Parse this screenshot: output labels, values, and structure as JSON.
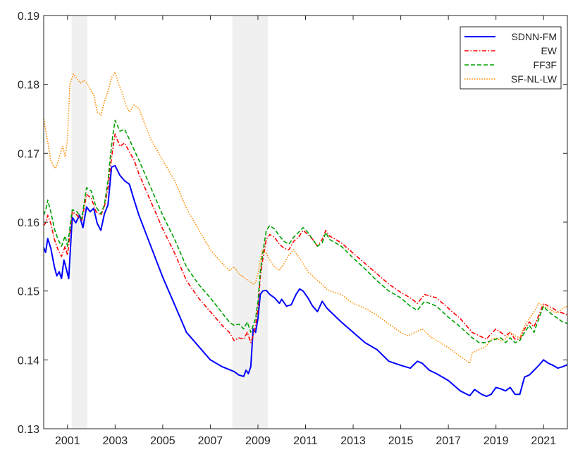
{
  "chart_data": {
    "type": "line",
    "title": "",
    "xlabel": "",
    "ylabel": "",
    "xlim": [
      2000.0,
      2022.0
    ],
    "ylim": [
      0.13,
      0.19
    ],
    "xticks": [
      2001,
      2003,
      2005,
      2007,
      2009,
      2011,
      2013,
      2015,
      2017,
      2019,
      2021
    ],
    "xtick_labels": [
      "2001",
      "2003",
      "2005",
      "2007",
      "2009",
      "2011",
      "2013",
      "2015",
      "2017",
      "2019",
      "2021"
    ],
    "yticks": [
      0.13,
      0.14,
      0.15,
      0.16,
      0.17,
      0.18,
      0.19
    ],
    "ytick_labels": [
      "0.13",
      "0.14",
      "0.15",
      "0.16",
      "0.17",
      "0.18",
      "0.19"
    ],
    "grid": false,
    "legend_position": "top-right",
    "shaded_periods": [
      [
        2001.17,
        2001.83
      ],
      [
        2007.92,
        2009.42
      ]
    ],
    "series": [
      {
        "name": "SDNN-FM",
        "color": "#0000ff",
        "style": "solid",
        "x": [
          2000.0,
          2000.08,
          2000.17,
          2000.3,
          2000.45,
          2000.55,
          2000.65,
          2000.75,
          2000.85,
          2000.95,
          2001.05,
          2001.2,
          2001.35,
          2001.5,
          2001.65,
          2001.8,
          2001.95,
          2002.1,
          2002.25,
          2002.4,
          2002.55,
          2002.7,
          2002.85,
          2003.0,
          2003.2,
          2003.4,
          2003.6,
          2003.8,
          2004.0,
          2004.5,
          2005.0,
          2005.5,
          2006.0,
          2006.5,
          2007.0,
          2007.5,
          2008.0,
          2008.2,
          2008.4,
          2008.5,
          2008.6,
          2008.7,
          2008.8,
          2008.9,
          2009.0,
          2009.1,
          2009.2,
          2009.35,
          2009.5,
          2009.7,
          2009.9,
          2010.0,
          2010.2,
          2010.4,
          2010.6,
          2010.75,
          2010.9,
          2011.1,
          2011.3,
          2011.5,
          2011.7,
          2011.9,
          2012.2,
          2012.5,
          2013.0,
          2013.5,
          2014.0,
          2014.5,
          2015.0,
          2015.4,
          2015.7,
          2015.9,
          2016.2,
          2016.5,
          2017.0,
          2017.5,
          2017.9,
          2018.1,
          2018.4,
          2018.6,
          2018.8,
          2019.0,
          2019.2,
          2019.4,
          2019.6,
          2019.8,
          2020.0,
          2020.2,
          2020.4,
          2020.6,
          2020.8,
          2021.0,
          2021.2,
          2021.4,
          2021.6,
          2021.8,
          2022.0
        ],
        "values": [
          0.1563,
          0.1556,
          0.1576,
          0.1562,
          0.1535,
          0.1522,
          0.1528,
          0.1518,
          0.1545,
          0.1532,
          0.1518,
          0.1607,
          0.1599,
          0.161,
          0.1592,
          0.1622,
          0.1615,
          0.162,
          0.1598,
          0.1588,
          0.1612,
          0.1625,
          0.168,
          0.1682,
          0.1668,
          0.166,
          0.1655,
          0.1632,
          0.161,
          0.1565,
          0.152,
          0.148,
          0.144,
          0.142,
          0.14,
          0.139,
          0.1383,
          0.1378,
          0.1376,
          0.1385,
          0.138,
          0.139,
          0.1445,
          0.144,
          0.146,
          0.1495,
          0.15,
          0.1501,
          0.1495,
          0.149,
          0.1482,
          0.1488,
          0.1478,
          0.148,
          0.1495,
          0.1503,
          0.15,
          0.149,
          0.1478,
          0.147,
          0.1485,
          0.1475,
          0.1465,
          0.1455,
          0.144,
          0.1425,
          0.1415,
          0.1398,
          0.1392,
          0.1388,
          0.1398,
          0.1395,
          0.1385,
          0.138,
          0.137,
          0.1355,
          0.1348,
          0.1357,
          0.135,
          0.1347,
          0.135,
          0.136,
          0.1358,
          0.1355,
          0.136,
          0.135,
          0.135,
          0.1375,
          0.1378,
          0.1385,
          0.1392,
          0.14,
          0.1395,
          0.1392,
          0.1388,
          0.139,
          0.1393
        ]
      },
      {
        "name": "EW",
        "color": "#ff0000",
        "style": "dashdot",
        "x": [
          2000.0,
          2000.1,
          2000.17,
          2000.3,
          2000.45,
          2000.6,
          2000.75,
          2000.9,
          2001.0,
          2001.2,
          2001.4,
          2001.6,
          2001.8,
          2002.0,
          2002.2,
          2002.4,
          2002.55,
          2002.7,
          2002.8,
          2002.9,
          2003.0,
          2003.2,
          2003.4,
          2003.6,
          2003.8,
          2004.0,
          2004.5,
          2005.0,
          2005.5,
          2006.0,
          2006.5,
          2007.0,
          2007.5,
          2007.8,
          2008.0,
          2008.2,
          2008.4,
          2008.55,
          2008.7,
          2008.8,
          2008.9,
          2009.0,
          2009.1,
          2009.2,
          2009.35,
          2009.5,
          2009.7,
          2009.9,
          2010.1,
          2010.3,
          2010.5,
          2010.7,
          2010.9,
          2011.1,
          2011.3,
          2011.5,
          2011.7,
          2011.85,
          2012.0,
          2012.5,
          2013.0,
          2013.5,
          2014.0,
          2014.5,
          2015.0,
          2015.4,
          2015.7,
          2016.0,
          2016.5,
          2017.0,
          2017.5,
          2018.0,
          2018.3,
          2018.6,
          2018.8,
          2019.0,
          2019.2,
          2019.4,
          2019.6,
          2019.8,
          2020.0,
          2020.2,
          2020.4,
          2020.6,
          2020.8,
          2021.0,
          2021.2,
          2021.4,
          2021.6,
          2021.8,
          2022.0
        ],
        "values": [
          0.1595,
          0.16,
          0.161,
          0.1598,
          0.1575,
          0.156,
          0.155,
          0.1565,
          0.1552,
          0.1615,
          0.161,
          0.1602,
          0.164,
          0.1635,
          0.1615,
          0.161,
          0.1622,
          0.165,
          0.168,
          0.1705,
          0.1728,
          0.171,
          0.1715,
          0.1702,
          0.169,
          0.167,
          0.163,
          0.159,
          0.1555,
          0.1515,
          0.149,
          0.147,
          0.145,
          0.144,
          0.1428,
          0.1432,
          0.143,
          0.144,
          0.1425,
          0.1435,
          0.145,
          0.1475,
          0.152,
          0.1545,
          0.1575,
          0.1582,
          0.1578,
          0.1568,
          0.1562,
          0.156,
          0.1572,
          0.1578,
          0.1588,
          0.1582,
          0.1575,
          0.1565,
          0.1575,
          0.1588,
          0.158,
          0.157,
          0.1555,
          0.154,
          0.1525,
          0.151,
          0.1498,
          0.149,
          0.1482,
          0.1495,
          0.149,
          0.1475,
          0.146,
          0.144,
          0.1435,
          0.143,
          0.1438,
          0.1445,
          0.144,
          0.1435,
          0.144,
          0.143,
          0.143,
          0.1445,
          0.1455,
          0.1448,
          0.1465,
          0.1482,
          0.1478,
          0.1475,
          0.147,
          0.1468,
          0.1465
        ]
      },
      {
        "name": "FF3F",
        "color": "#00a000",
        "style": "dashed",
        "x": [
          2000.0,
          2000.1,
          2000.17,
          2000.3,
          2000.45,
          2000.6,
          2000.75,
          2000.9,
          2001.0,
          2001.2,
          2001.4,
          2001.6,
          2001.8,
          2002.0,
          2002.2,
          2002.4,
          2002.55,
          2002.7,
          2002.8,
          2002.9,
          2003.0,
          2003.2,
          2003.4,
          2003.6,
          2003.8,
          2004.0,
          2004.5,
          2005.0,
          2005.5,
          2006.0,
          2006.5,
          2007.0,
          2007.5,
          2007.8,
          2008.0,
          2008.2,
          2008.4,
          2008.55,
          2008.7,
          2008.8,
          2008.9,
          2009.0,
          2009.1,
          2009.2,
          2009.35,
          2009.5,
          2009.7,
          2009.9,
          2010.1,
          2010.3,
          2010.5,
          2010.7,
          2010.9,
          2011.1,
          2011.3,
          2011.5,
          2011.7,
          2011.85,
          2012.0,
          2012.5,
          2013.0,
          2013.5,
          2014.0,
          2014.5,
          2015.0,
          2015.4,
          2015.7,
          2016.0,
          2016.5,
          2017.0,
          2017.5,
          2018.0,
          2018.3,
          2018.6,
          2018.8,
          2019.0,
          2019.2,
          2019.4,
          2019.6,
          2019.8,
          2020.0,
          2020.2,
          2020.4,
          2020.6,
          2020.8,
          2021.0,
          2021.2,
          2021.4,
          2021.6,
          2021.8,
          2022.0
        ],
        "values": [
          0.161,
          0.162,
          0.1632,
          0.1615,
          0.159,
          0.1575,
          0.1565,
          0.158,
          0.1565,
          0.1618,
          0.1615,
          0.1605,
          0.165,
          0.1645,
          0.1622,
          0.1612,
          0.1625,
          0.166,
          0.1695,
          0.1725,
          0.1748,
          0.1732,
          0.1735,
          0.172,
          0.1705,
          0.169,
          0.165,
          0.161,
          0.1575,
          0.1535,
          0.151,
          0.149,
          0.1468,
          0.1455,
          0.145,
          0.1452,
          0.1445,
          0.1455,
          0.144,
          0.145,
          0.146,
          0.1485,
          0.1528,
          0.1555,
          0.1588,
          0.1595,
          0.159,
          0.158,
          0.1572,
          0.1568,
          0.1578,
          0.1585,
          0.1592,
          0.1585,
          0.1575,
          0.1565,
          0.157,
          0.1585,
          0.1575,
          0.1565,
          0.1548,
          0.1532,
          0.1515,
          0.15,
          0.149,
          0.1478,
          0.1472,
          0.1485,
          0.1478,
          0.1462,
          0.1448,
          0.1432,
          0.1425,
          0.1425,
          0.1428,
          0.143,
          0.1432,
          0.1425,
          0.1432,
          0.1425,
          0.1428,
          0.144,
          0.145,
          0.144,
          0.146,
          0.1478,
          0.147,
          0.1465,
          0.146,
          0.1455,
          0.1453
        ]
      },
      {
        "name": "SF-NL-LW",
        "color": "#ff8c00",
        "style": "dotted",
        "x": [
          2000.0,
          2000.1,
          2000.2,
          2000.3,
          2000.4,
          2000.5,
          2000.6,
          2000.7,
          2000.8,
          2000.9,
          2001.0,
          2001.1,
          2001.25,
          2001.4,
          2001.55,
          2001.7,
          2001.85,
          2002.0,
          2002.1,
          2002.25,
          2002.4,
          2002.55,
          2002.7,
          2002.85,
          2003.0,
          2003.15,
          2003.3,
          2003.45,
          2003.6,
          2003.8,
          2004.0,
          2004.5,
          2005.0,
          2005.5,
          2006.0,
          2006.5,
          2007.0,
          2007.5,
          2007.8,
          2008.0,
          2008.2,
          2008.4,
          2008.6,
          2008.8,
          2008.9,
          2009.0,
          2009.1,
          2009.2,
          2009.35,
          2009.5,
          2009.7,
          2009.9,
          2010.1,
          2010.3,
          2010.5,
          2010.7,
          2010.9,
          2011.1,
          2011.3,
          2011.5,
          2011.7,
          2011.9,
          2012.2,
          2012.5,
          2013.0,
          2013.5,
          2014.0,
          2014.5,
          2015.0,
          2015.3,
          2015.6,
          2015.9,
          2016.2,
          2016.5,
          2017.0,
          2017.5,
          2017.9,
          2018.0,
          2018.3,
          2018.6,
          2018.8,
          2019.0,
          2019.2,
          2019.4,
          2019.6,
          2019.8,
          2020.0,
          2020.2,
          2020.4,
          2020.6,
          2020.8,
          2021.0,
          2021.2,
          2021.4,
          2021.6,
          2021.8,
          2022.0
        ],
        "values": [
          0.175,
          0.173,
          0.171,
          0.169,
          0.1682,
          0.1678,
          0.1688,
          0.17,
          0.171,
          0.1695,
          0.172,
          0.18,
          0.1815,
          0.1808,
          0.1802,
          0.1806,
          0.18,
          0.179,
          0.1785,
          0.176,
          0.1755,
          0.1775,
          0.179,
          0.181,
          0.1818,
          0.18,
          0.1788,
          0.177,
          0.176,
          0.177,
          0.1765,
          0.172,
          0.169,
          0.166,
          0.162,
          0.159,
          0.156,
          0.154,
          0.153,
          0.1535,
          0.1525,
          0.152,
          0.1515,
          0.151,
          0.1512,
          0.1525,
          0.1545,
          0.156,
          0.1555,
          0.1545,
          0.1535,
          0.153,
          0.154,
          0.1552,
          0.156,
          0.155,
          0.154,
          0.1528,
          0.1522,
          0.1515,
          0.151,
          0.1502,
          0.1498,
          0.1495,
          0.1482,
          0.1475,
          0.1465,
          0.1452,
          0.144,
          0.1435,
          0.144,
          0.1445,
          0.1435,
          0.1428,
          0.1418,
          0.1405,
          0.1395,
          0.141,
          0.1415,
          0.142,
          0.143,
          0.1432,
          0.1428,
          0.143,
          0.144,
          0.1435,
          0.1432,
          0.145,
          0.146,
          0.147,
          0.1482,
          0.1478,
          0.1475,
          0.147,
          0.1468,
          0.1475,
          0.1478
        ]
      }
    ]
  }
}
